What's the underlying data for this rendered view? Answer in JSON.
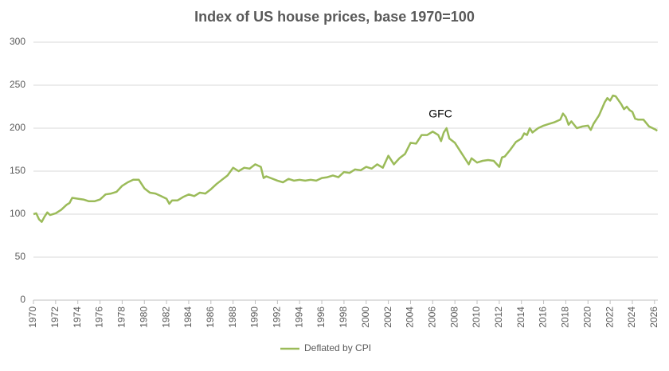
{
  "chart_data": {
    "type": "line",
    "title": "Index of US house prices, base 1970=100",
    "x": [
      1970.0,
      1970.25,
      1970.5,
      1970.75,
      1971.0,
      1971.25,
      1971.5,
      1972.0,
      1972.5,
      1973.0,
      1973.25,
      1973.5,
      1974.0,
      1974.5,
      1975.0,
      1975.5,
      1976.0,
      1976.5,
      1977.0,
      1977.5,
      1978.0,
      1978.5,
      1979.0,
      1979.5,
      1980.0,
      1980.5,
      1981.0,
      1981.5,
      1982.0,
      1982.25,
      1982.5,
      1983.0,
      1983.5,
      1984.0,
      1984.5,
      1985.0,
      1985.5,
      1986.0,
      1986.5,
      1987.0,
      1987.5,
      1988.0,
      1988.5,
      1989.0,
      1989.5,
      1990.0,
      1990.5,
      1990.75,
      1991.0,
      1992.0,
      1992.5,
      1993.0,
      1993.5,
      1994.0,
      1994.5,
      1995.0,
      1995.5,
      1996.0,
      1996.5,
      1997.0,
      1997.5,
      1998.0,
      1998.5,
      1999.0,
      1999.5,
      2000.0,
      2000.5,
      2001.0,
      2001.5,
      2002.0,
      2002.5,
      2003.0,
      2003.5,
      2004.0,
      2004.5,
      2005.0,
      2005.5,
      2006.0,
      2006.5,
      2006.75,
      2007.0,
      2007.25,
      2007.5,
      2008.0,
      2008.5,
      2009.0,
      2009.25,
      2009.5,
      2010.0,
      2010.5,
      2011.0,
      2011.5,
      2012.0,
      2012.25,
      2012.5,
      2013.0,
      2013.5,
      2014.0,
      2014.25,
      2014.5,
      2014.75,
      2015.0,
      2015.5,
      2016.0,
      2016.5,
      2017.0,
      2017.5,
      2017.75,
      2018.0,
      2018.25,
      2018.5,
      2019.0,
      2019.5,
      2020.0,
      2020.25,
      2020.5,
      2021.0,
      2021.5,
      2021.75,
      2022.0,
      2022.25,
      2022.5,
      2023.0,
      2023.25,
      2023.5,
      2023.75,
      2024.0,
      2024.25,
      2024.5,
      2025.0,
      2025.5,
      2026.0,
      2026.25
    ],
    "series": [
      {
        "name": "Deflated by CPI",
        "color": "#9bbb59",
        "values": [
          100,
          101,
          94,
          91,
          97,
          102,
          99,
          101,
          105,
          111,
          113,
          119,
          118,
          117,
          115,
          115,
          117,
          123,
          124,
          126,
          133,
          137,
          140,
          140,
          130,
          125,
          124,
          121,
          118,
          112,
          116,
          116,
          120,
          123,
          121,
          125,
          124,
          129,
          135,
          140,
          145,
          154,
          150,
          154,
          153,
          158,
          155,
          142,
          144,
          139,
          137,
          141,
          139,
          140,
          139,
          140,
          139,
          142,
          143,
          145,
          143,
          149,
          148,
          152,
          151,
          155,
          153,
          158,
          154,
          168,
          158,
          165,
          170,
          183,
          182,
          192,
          192,
          196,
          192,
          185,
          195,
          200,
          188,
          183,
          173,
          163,
          158,
          165,
          160,
          162,
          163,
          162,
          155,
          166,
          167,
          175,
          184,
          188,
          194,
          192,
          200,
          195,
          200,
          203,
          205,
          207,
          210,
          217,
          213,
          204,
          208,
          200,
          202,
          203,
          198,
          205,
          215,
          230,
          235,
          232,
          238,
          237,
          228,
          222,
          225,
          221,
          219,
          211,
          210,
          210,
          202,
          199,
          197
        ]
      }
    ],
    "annotations": [
      {
        "text": "GFC",
        "x": 2006.7,
        "y": 216
      }
    ],
    "xlim": [
      1970,
      2026.3
    ],
    "xticks": [
      1970,
      1972,
      1974,
      1976,
      1978,
      1980,
      1982,
      1984,
      1986,
      1988,
      1990,
      1992,
      1994,
      1996,
      1998,
      2000,
      2002,
      2004,
      2006,
      2008,
      2010,
      2012,
      2014,
      2016,
      2018,
      2020,
      2022,
      2024,
      2026
    ],
    "ylim": [
      0,
      300
    ],
    "yticks": [
      0,
      50,
      100,
      150,
      200,
      250,
      300
    ],
    "grid": true
  }
}
